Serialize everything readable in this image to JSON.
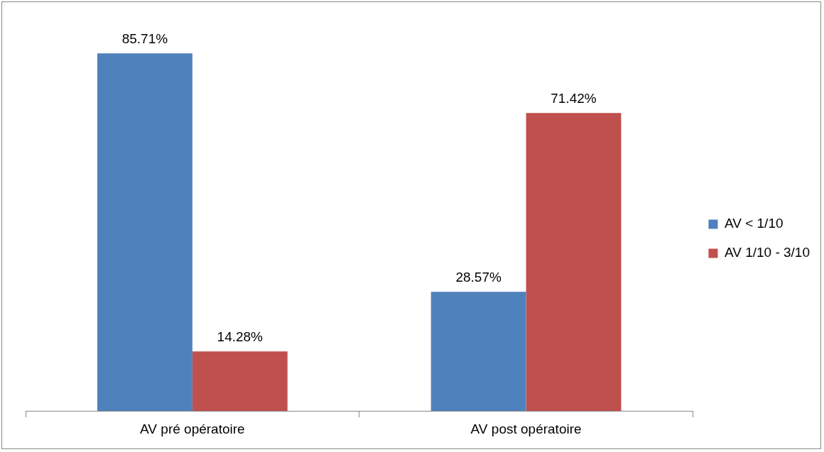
{
  "chart_data": {
    "type": "bar",
    "categories": [
      "AV pré opératoire",
      "AV post opératoire"
    ],
    "series": [
      {
        "name": "AV < 1/10",
        "color": "#4f81bd",
        "values": [
          85.71,
          28.57
        ],
        "value_labels": [
          "85.71%",
          "28.57%"
        ]
      },
      {
        "name": "AV 1/10 - 3/10",
        "color": "#c0504d",
        "values": [
          14.28,
          71.42
        ],
        "value_labels": [
          "14.28%",
          "71.42%"
        ]
      }
    ],
    "legend": "right",
    "grid": false,
    "tick_labels": "x"
  }
}
